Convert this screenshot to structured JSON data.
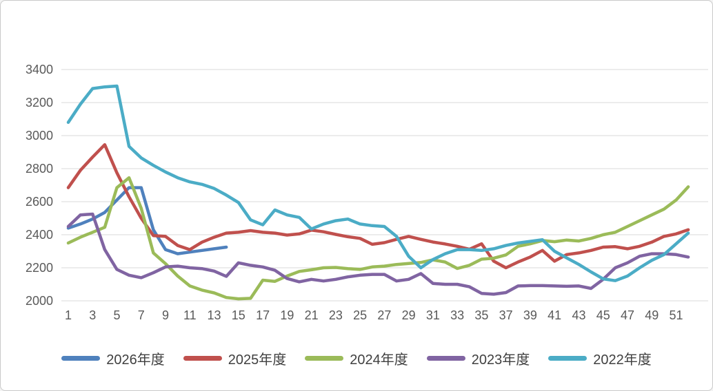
{
  "chart_data": {
    "type": "line",
    "title": "",
    "xlabel": "",
    "ylabel": "",
    "x_unit": "week-number 1 to 52",
    "x_tick_labels": [
      "1",
      "3",
      "5",
      "7",
      "9",
      "11",
      "13",
      "15",
      "17",
      "19",
      "21",
      "23",
      "25",
      "27",
      "29",
      "31",
      "33",
      "35",
      "37",
      "39",
      "41",
      "43",
      "45",
      "47",
      "49",
      "51"
    ],
    "y_ticks": [
      2000,
      2200,
      2400,
      2600,
      2800,
      3000,
      3200,
      3400
    ],
    "ylim": [
      2000,
      3400
    ],
    "grid": true,
    "legend_position": "bottom",
    "series": [
      {
        "name": "2026年度",
        "color": "#4F81BD",
        "values": [
          2440,
          2465,
          2495,
          2535,
          2610,
          2685,
          2685,
          2430,
          2310,
          2285,
          2295,
          2305,
          2315,
          2325
        ]
      },
      {
        "name": "2025年度",
        "color": "#C0504D",
        "values": [
          2685,
          2790,
          2870,
          2945,
          2775,
          2630,
          2500,
          2395,
          2390,
          2335,
          2310,
          2355,
          2385,
          2410,
          2415,
          2425,
          2415,
          2410,
          2398,
          2405,
          2428,
          2418,
          2402,
          2388,
          2378,
          2342,
          2352,
          2372,
          2390,
          2372,
          2356,
          2344,
          2330,
          2312,
          2345,
          2240,
          2200,
          2235,
          2265,
          2305,
          2240,
          2280,
          2290,
          2305,
          2325,
          2328,
          2315,
          2330,
          2355,
          2390,
          2405,
          2430
        ]
      },
      {
        "name": "2024年度",
        "color": "#9BBB59",
        "values": [
          2350,
          2385,
          2415,
          2445,
          2685,
          2745,
          2560,
          2290,
          2225,
          2150,
          2090,
          2065,
          2048,
          2020,
          2012,
          2015,
          2125,
          2118,
          2150,
          2178,
          2188,
          2200,
          2202,
          2195,
          2190,
          2205,
          2210,
          2220,
          2226,
          2232,
          2248,
          2235,
          2196,
          2215,
          2252,
          2258,
          2278,
          2330,
          2345,
          2365,
          2358,
          2368,
          2362,
          2378,
          2400,
          2415,
          2450,
          2485,
          2520,
          2555,
          2610,
          2690
        ]
      },
      {
        "name": "2023年度",
        "color": "#8064A2",
        "values": [
          2450,
          2520,
          2525,
          2310,
          2190,
          2155,
          2140,
          2170,
          2205,
          2210,
          2200,
          2195,
          2180,
          2148,
          2230,
          2215,
          2205,
          2185,
          2135,
          2115,
          2130,
          2120,
          2130,
          2145,
          2155,
          2160,
          2160,
          2120,
          2130,
          2165,
          2105,
          2100,
          2100,
          2085,
          2045,
          2040,
          2050,
          2090,
          2092,
          2092,
          2090,
          2088,
          2090,
          2075,
          2130,
          2200,
          2230,
          2270,
          2285,
          2285,
          2280,
          2265
        ]
      },
      {
        "name": "2022年度",
        "color": "#4BACC6",
        "values": [
          3080,
          3190,
          3285,
          3295,
          3300,
          2935,
          2865,
          2820,
          2780,
          2745,
          2720,
          2705,
          2680,
          2640,
          2595,
          2490,
          2460,
          2550,
          2520,
          2505,
          2435,
          2465,
          2485,
          2495,
          2465,
          2455,
          2450,
          2390,
          2270,
          2200,
          2250,
          2285,
          2310,
          2310,
          2305,
          2315,
          2335,
          2350,
          2360,
          2370,
          2300,
          2260,
          2220,
          2175,
          2133,
          2122,
          2150,
          2200,
          2245,
          2280,
          2345,
          2410
        ]
      }
    ]
  },
  "colors": {
    "background": "#ffffff",
    "border": "#c9c9c9",
    "gridline": "#d9d9d9",
    "axis_text": "#595959",
    "legend_text": "#404040"
  },
  "layout_values": {
    "line_width": 4.5,
    "axis_font_size": 18
  }
}
